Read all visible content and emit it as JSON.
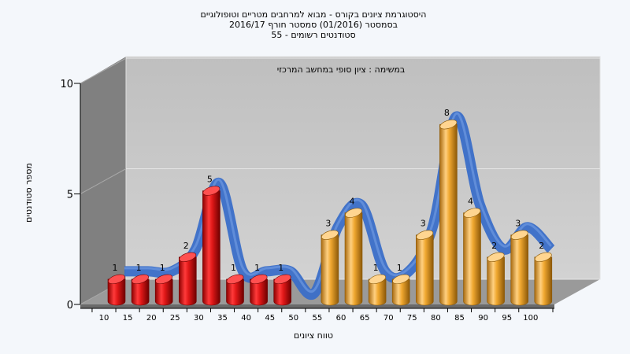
{
  "chart_data": {
    "type": "bar",
    "title_lines": [
      "היסטוגרמת ציונים בקורס - מבוא למרחבים מטריים וטופולוגיים",
      "בסמסטר  (01/2016)  סמסטר חורף  2016/17",
      "סטודנטים רשומים - 55"
    ],
    "annotation": "במשימה : ציון סופי במחשב המרכזי",
    "xlabel": "טווח ציונים",
    "ylabel": "מספר סטודנטים",
    "ylim": [
      0,
      10
    ],
    "yticks": [
      "0",
      "5",
      "10"
    ],
    "categories": [
      "10",
      "15",
      "20",
      "25",
      "30",
      "35",
      "40",
      "45",
      "50",
      "55",
      "60",
      "65",
      "70",
      "75",
      "80",
      "85",
      "90",
      "95",
      "100"
    ],
    "values": [
      1,
      1,
      1,
      2,
      5,
      1,
      1,
      1,
      0,
      3,
      4,
      1,
      1,
      3,
      8,
      4,
      2,
      3,
      2
    ],
    "bar_colors": [
      "red",
      "red",
      "red",
      "red",
      "red",
      "red",
      "red",
      "red",
      "none",
      "orange",
      "orange",
      "orange",
      "orange",
      "orange",
      "orange",
      "orange",
      "orange",
      "orange",
      "orange"
    ],
    "colors": {
      "red": "#e01818",
      "orange": "#f0a830",
      "curve": "#3a6ec8",
      "wall": "#c8c8c8",
      "side_wall": "#808080"
    },
    "grid": true,
    "legend": "none"
  }
}
